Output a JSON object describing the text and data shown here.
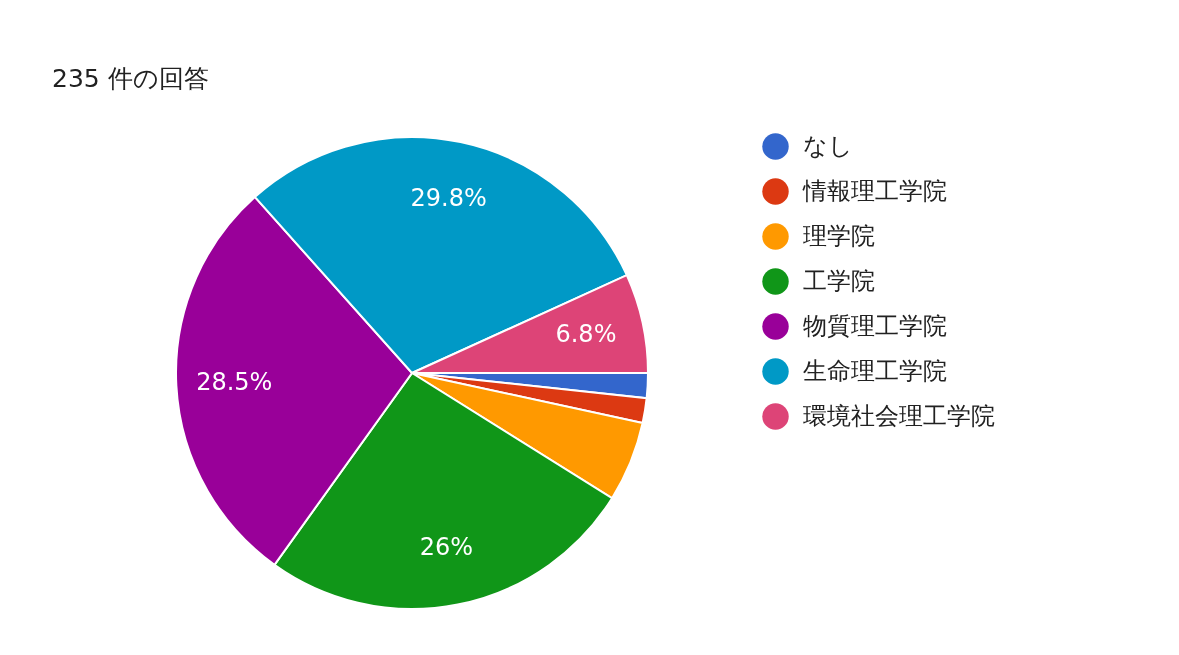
{
  "chart_data": {
    "type": "pie",
    "title": "235 件の回答",
    "categories": [
      "なし",
      "情報理工学院",
      "理学院",
      "工学院",
      "物質理工学院",
      "生命理工学院",
      "環境社会理工学院"
    ],
    "values": [
      1.7,
      1.7,
      5.5,
      26,
      28.5,
      29.8,
      6.8
    ],
    "colors": [
      "#3366cc",
      "#dc3912",
      "#ff9900",
      "#109618",
      "#990099",
      "#0099c6",
      "#dd4477"
    ],
    "value_labels": [
      null,
      null,
      null,
      "26%",
      "28.5%",
      "29.8%",
      "6.8%"
    ],
    "legend": "right"
  }
}
